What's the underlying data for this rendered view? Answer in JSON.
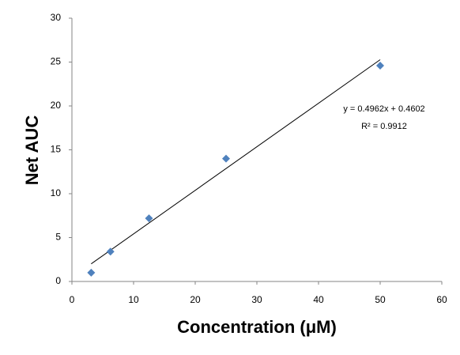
{
  "chart_data": {
    "type": "scatter",
    "x_label": "Concentration  (μM)",
    "y_label": "Net AUC",
    "series": [
      {
        "x": [
          3.125,
          6.25,
          12.5,
          25,
          50
        ],
        "values": [
          1.0,
          3.4,
          7.2,
          14.0,
          24.6
        ],
        "color": "#4f81bd"
      }
    ],
    "trendline": {
      "x": [
        3.125,
        50
      ],
      "values": [
        2.011,
        25.27
      ],
      "color": "#000000"
    },
    "annotations": [
      "y = 0.4962x  + 0.4602",
      "R² = 0.9912"
    ],
    "xlim": [
      0,
      60
    ],
    "xticks": [
      0,
      10,
      20,
      30,
      40,
      50,
      60
    ],
    "ylim": [
      0,
      30
    ],
    "yticks": [
      0,
      5,
      10,
      15,
      20,
      25,
      30
    ],
    "grid": false
  }
}
